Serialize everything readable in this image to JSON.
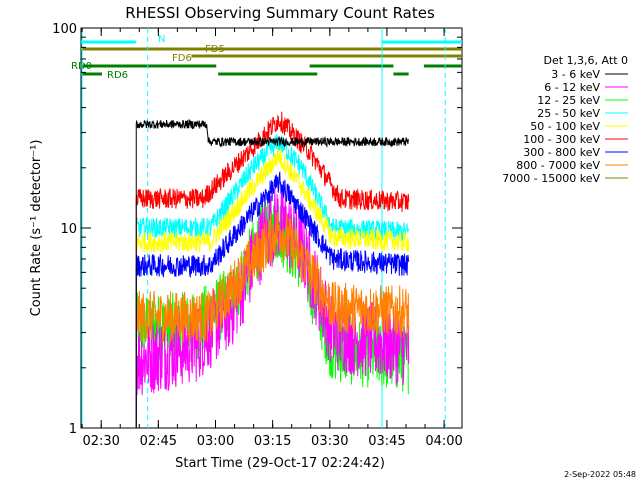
{
  "chart_data": {
    "type": "line",
    "title": "RHESSI Observing Summary Count Rates",
    "xlabel": "Start Time (29-Oct-17 02:24:42)",
    "ylabel": "Count Rate (s⁻¹ detector⁻¹)",
    "ylog": true,
    "ylim": [
      1,
      100
    ],
    "xlim_minutes_after_0224": [
      0,
      100
    ],
    "x_ticks": [
      {
        "label": "02:30",
        "minute": 5.3
      },
      {
        "label": "02:45",
        "minute": 20.3
      },
      {
        "label": "03:00",
        "minute": 35.3
      },
      {
        "label": "03:15",
        "minute": 50.3
      },
      {
        "label": "03:30",
        "minute": 65.3
      },
      {
        "label": "03:45",
        "minute": 80.3
      },
      {
        "label": "04:00",
        "minute": 95.3
      }
    ],
    "y_ticks": [
      {
        "label": "1",
        "value": 1
      },
      {
        "label": "10",
        "value": 10
      },
      {
        "label": "100",
        "value": 100
      }
    ],
    "legend_header": "Det 1,3,6, Att 0",
    "data_window_minutes": [
      14.5,
      86.0
    ],
    "series": [
      {
        "name": "3 - 6 keV",
        "color": "#000000",
        "profile": [
          [
            14.5,
            33
          ],
          [
            33,
            33
          ],
          [
            33.5,
            27
          ],
          [
            86,
            27
          ]
        ]
      },
      {
        "name": "6 - 12 keV",
        "color": "#ff00ff",
        "profile": [
          [
            14.5,
            2.2
          ],
          [
            30,
            2.6
          ],
          [
            40,
            4
          ],
          [
            48,
            9
          ],
          [
            52,
            11
          ],
          [
            58,
            8
          ],
          [
            66,
            3
          ],
          [
            86,
            2.5
          ]
        ]
      },
      {
        "name": "12 - 25 keV",
        "color": "#00ff00",
        "profile": [
          [
            14.5,
            3.2
          ],
          [
            30,
            3.2
          ],
          [
            40,
            4.5
          ],
          [
            48,
            9.5
          ],
          [
            52,
            10
          ],
          [
            58,
            7
          ],
          [
            66,
            2.5
          ],
          [
            86,
            2.2
          ]
        ]
      },
      {
        "name": "25 - 50 keV",
        "color": "#00ffff",
        "profile": [
          [
            14.5,
            10
          ],
          [
            34,
            10
          ],
          [
            45,
            20
          ],
          [
            52,
            27
          ],
          [
            58,
            20
          ],
          [
            66,
            10
          ],
          [
            86,
            9.5
          ]
        ]
      },
      {
        "name": "50 - 100 keV",
        "color": "#ffff00",
        "profile": [
          [
            14.5,
            8.5
          ],
          [
            34,
            8.5
          ],
          [
            45,
            16
          ],
          [
            52,
            23
          ],
          [
            58,
            16
          ],
          [
            66,
            9
          ],
          [
            86,
            8.5
          ]
        ]
      },
      {
        "name": "100 - 300 keV",
        "color": "#ff0000",
        "profile": [
          [
            14.5,
            14
          ],
          [
            32,
            14
          ],
          [
            44,
            24
          ],
          [
            52,
            35
          ],
          [
            60,
            24
          ],
          [
            68,
            14
          ],
          [
            86,
            13.5
          ]
        ]
      },
      {
        "name": "300 - 800 keV",
        "color": "#0000ff",
        "profile": [
          [
            14.5,
            6.5
          ],
          [
            34,
            6.5
          ],
          [
            45,
            12
          ],
          [
            52,
            17
          ],
          [
            58,
            12
          ],
          [
            66,
            7
          ],
          [
            86,
            6.5
          ]
        ]
      },
      {
        "name": "800 - 7000 keV",
        "color": "#ff8000",
        "profile": [
          [
            14.5,
            3.6
          ],
          [
            34,
            3.6
          ],
          [
            44,
            6.5
          ],
          [
            52,
            10
          ],
          [
            58,
            7
          ],
          [
            66,
            4
          ],
          [
            86,
            3.8
          ]
        ]
      },
      {
        "name": "7000 - 15000 keV",
        "color": "#808000",
        "profile": []
      }
    ],
    "flag_bars": [
      {
        "label": "N",
        "color": "#00ffff",
        "segments": [
          [
            0,
            14.4
          ],
          [
            79,
            100
          ]
        ]
      },
      {
        "label": "FD5",
        "color": "#808000",
        "segments": [
          [
            0,
            100
          ]
        ]
      },
      {
        "label": "FD6",
        "color": "#808000",
        "segments": [
          [
            29,
            100
          ]
        ]
      },
      {
        "label": "RD0",
        "color": "#008000",
        "segments": [
          [
            0,
            35.5
          ],
          [
            60,
            82
          ],
          [
            90,
            100
          ]
        ]
      },
      {
        "label": "RD6",
        "color": "#008000",
        "segments": [
          [
            0,
            5.5
          ],
          [
            36,
            62
          ],
          [
            82,
            86
          ]
        ]
      }
    ],
    "solid_vlines_minutes": [
      79
    ],
    "dashed_vlines_minutes": [
      17.5,
      95.6
    ],
    "footer": "2-Sep-2022 05:48"
  }
}
